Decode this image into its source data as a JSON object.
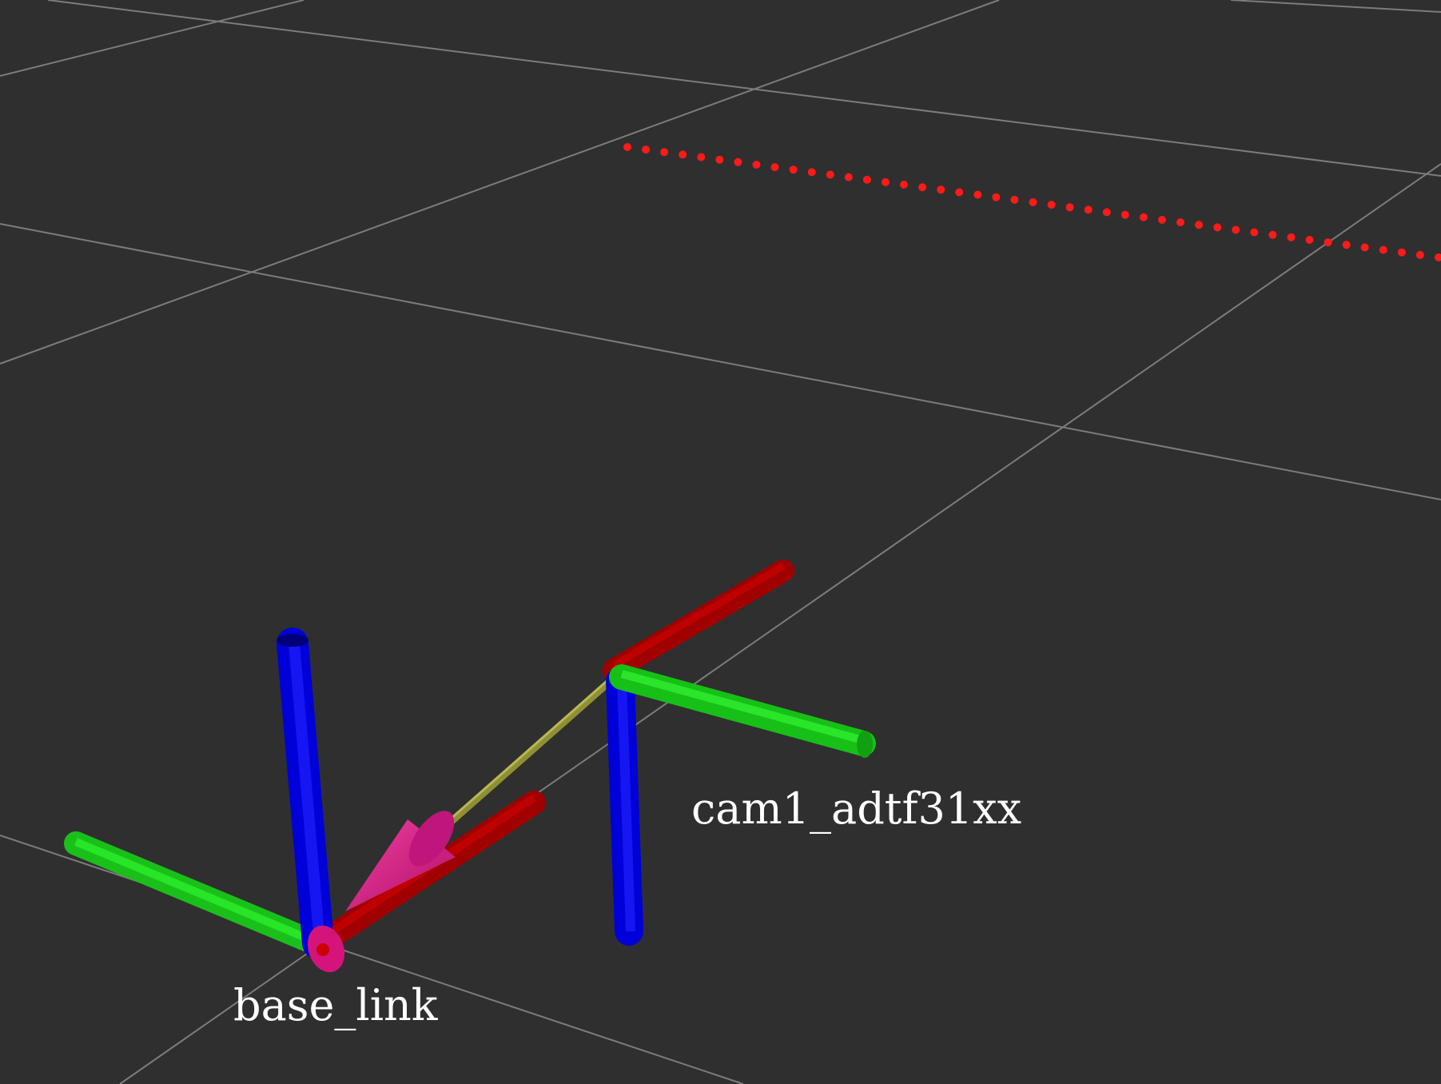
{
  "viewport": {
    "background": "#2f2f2f",
    "grid_color": "#8a8a8a"
  },
  "frames": [
    {
      "name": "base_link",
      "label": "base_link"
    },
    {
      "name": "cam1_adtf31xx",
      "label": "cam1_adtf31xx"
    }
  ],
  "axis_colors": {
    "x": "#e00000",
    "y": "#00e000",
    "z": "#0000f0"
  },
  "tf_link": {
    "from": "cam1_adtf31xx",
    "to": "base_link",
    "arrow_color": "#d4147a",
    "shaft_color": "#9a9a3a"
  },
  "point_cloud": {
    "color": "#ff1a1a"
  }
}
